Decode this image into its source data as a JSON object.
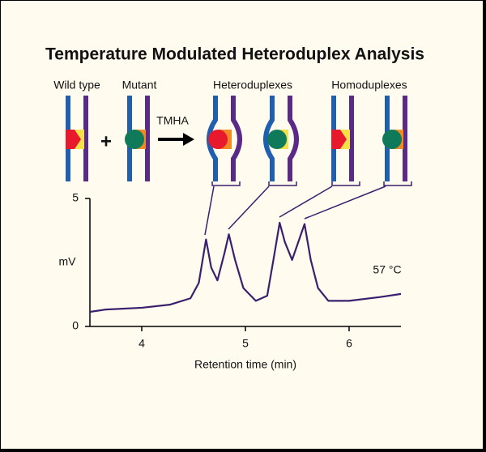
{
  "chart_data": {
    "type": "line",
    "title": "Temperature Modulated Heteroduplex Analysis",
    "x": [
      3.5,
      3.65,
      4.0,
      4.27,
      4.47,
      4.55,
      4.62,
      4.67,
      4.73,
      4.8,
      4.84,
      4.9,
      4.98,
      5.1,
      5.21,
      5.27,
      5.33,
      5.38,
      5.45,
      5.51,
      5.57,
      5.63,
      5.7,
      5.8,
      6.0,
      6.3,
      6.5
    ],
    "values": [
      0.57,
      0.66,
      0.73,
      0.85,
      1.1,
      1.7,
      3.4,
      2.3,
      1.8,
      2.9,
      3.6,
      2.6,
      1.5,
      1.0,
      1.2,
      2.6,
      4.05,
      3.3,
      2.6,
      3.3,
      4.0,
      2.6,
      1.5,
      1.0,
      1.0,
      1.15,
      1.27
    ],
    "color": "#3b1f6e",
    "xlim": [
      3.5,
      6.5
    ],
    "xticks": [
      4,
      5,
      6
    ],
    "ylim": [
      0,
      5
    ],
    "yticks": [
      0,
      5
    ],
    "x_label": "Retention time (min)",
    "y_label": "mV",
    "annotation": "57 °C"
  },
  "diagram": {
    "wild_type": "Wild type",
    "mutant": "Mutant",
    "plus": "+",
    "arrow_label": "TMHA",
    "heteroduplexes": "Heteroduplexes",
    "homoduplexes": "Homoduplexes"
  }
}
